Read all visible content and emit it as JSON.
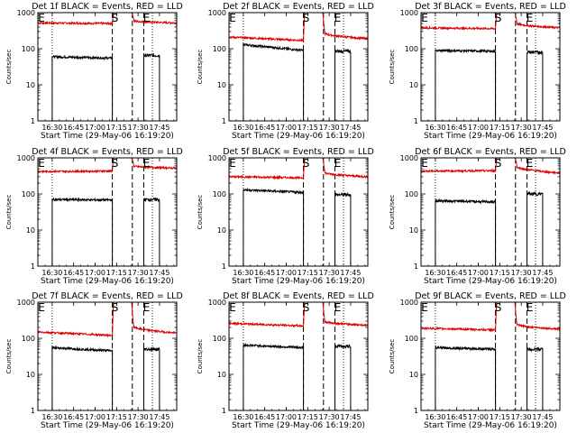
{
  "chart_data": {
    "type": "line",
    "layout": "3x3 grid",
    "ylabel": "Counts/sec",
    "xlabel": "Start Time (29-May-06 16:19:20)",
    "x_ticks": [
      "16:30",
      "16:45",
      "17:00",
      "17:15",
      "17:30",
      "17:45"
    ],
    "y_scale": "log",
    "y_ticks": [
      "1",
      "10",
      "100",
      "1000"
    ],
    "ylim": [
      1,
      1000
    ],
    "xlim": [
      "16:20",
      "17:57"
    ],
    "markers": {
      "start_label": "S",
      "end_label": "E"
    },
    "vertical_lines": {
      "dotted": [
        "16:30",
        "17:40"
      ],
      "dashed": [
        "17:12",
        "17:26",
        "17:34"
      ]
    },
    "series_colors": {
      "events": "#000000",
      "lld": "#dd0000"
    },
    "panels": [
      {
        "title": "Det 1f BLACK = Events, RED = LLD",
        "events": {
          "x_start": "16:30",
          "x_end": "17:12",
          "start": 60,
          "end": 55,
          "gap_start": "17:34",
          "gap_end": "17:45",
          "after": 65
        },
        "lld": {
          "pre": 520,
          "pre_end": 500,
          "peak": 1000,
          "post": 600,
          "post_end": 520
        }
      },
      {
        "title": "Det 2f BLACK = Events, RED = LLD",
        "events": {
          "x_start": "16:30",
          "x_end": "17:12",
          "start": 130,
          "end": 90,
          "gap_start": "17:34",
          "gap_end": "17:45",
          "after": 85
        },
        "lld": {
          "pre": 210,
          "pre_end": 170,
          "peak": 1000,
          "post": 280,
          "post_end": 190
        }
      },
      {
        "title": "Det 3f BLACK = Events, RED = LLD",
        "events": {
          "x_start": "16:30",
          "x_end": "17:12",
          "start": 90,
          "end": 85,
          "gap_start": "17:34",
          "gap_end": "17:45",
          "after": 80
        },
        "lld": {
          "pre": 380,
          "pre_end": 360,
          "peak": 1000,
          "post": 520,
          "post_end": 380
        }
      },
      {
        "title": "Det 4f BLACK = Events, RED = LLD",
        "events": {
          "x_start": "16:30",
          "x_end": "17:12",
          "start": 70,
          "end": 68,
          "gap_start": "17:34",
          "gap_end": "17:45",
          "after": 70
        },
        "lld": {
          "pre": 420,
          "pre_end": 430,
          "peak": 1000,
          "post": 600,
          "post_end": 520
        }
      },
      {
        "title": "Det 5f BLACK = Events, RED = LLD",
        "events": {
          "x_start": "16:30",
          "x_end": "17:12",
          "start": 130,
          "end": 110,
          "gap_start": "17:34",
          "gap_end": "17:45",
          "after": 95
        },
        "lld": {
          "pre": 300,
          "pre_end": 280,
          "peak": 1000,
          "post": 400,
          "post_end": 300
        }
      },
      {
        "title": "Det 6f BLACK = Events, RED = LLD",
        "events": {
          "x_start": "16:30",
          "x_end": "17:12",
          "start": 65,
          "end": 60,
          "gap_start": "17:34",
          "gap_end": "17:45",
          "after": 100
        },
        "lld": {
          "pre": 430,
          "pre_end": 440,
          "peak": 1000,
          "post": 600,
          "post_end": 380
        }
      },
      {
        "title": "Det 7f BLACK = Events, RED = LLD",
        "events": {
          "x_start": "16:30",
          "x_end": "17:12",
          "start": 55,
          "end": 45,
          "gap_start": "17:34",
          "gap_end": "17:45",
          "after": 50
        },
        "lld": {
          "pre": 150,
          "pre_end": 120,
          "peak": 1000,
          "post": 220,
          "post_end": 140
        }
      },
      {
        "title": "Det 8f BLACK = Events, RED = LLD",
        "events": {
          "x_start": "16:30",
          "x_end": "17:12",
          "start": 65,
          "end": 55,
          "gap_start": "17:34",
          "gap_end": "17:45",
          "after": 60
        },
        "lld": {
          "pre": 260,
          "pre_end": 220,
          "peak": 1000,
          "post": 300,
          "post_end": 230
        }
      },
      {
        "title": "Det 9f BLACK = Events, RED = LLD",
        "events": {
          "x_start": "16:30",
          "x_end": "17:12",
          "start": 55,
          "end": 50,
          "gap_start": "17:34",
          "gap_end": "17:45",
          "after": 50
        },
        "lld": {
          "pre": 190,
          "pre_end": 170,
          "peak": 1000,
          "post": 250,
          "post_end": 180
        }
      }
    ]
  }
}
